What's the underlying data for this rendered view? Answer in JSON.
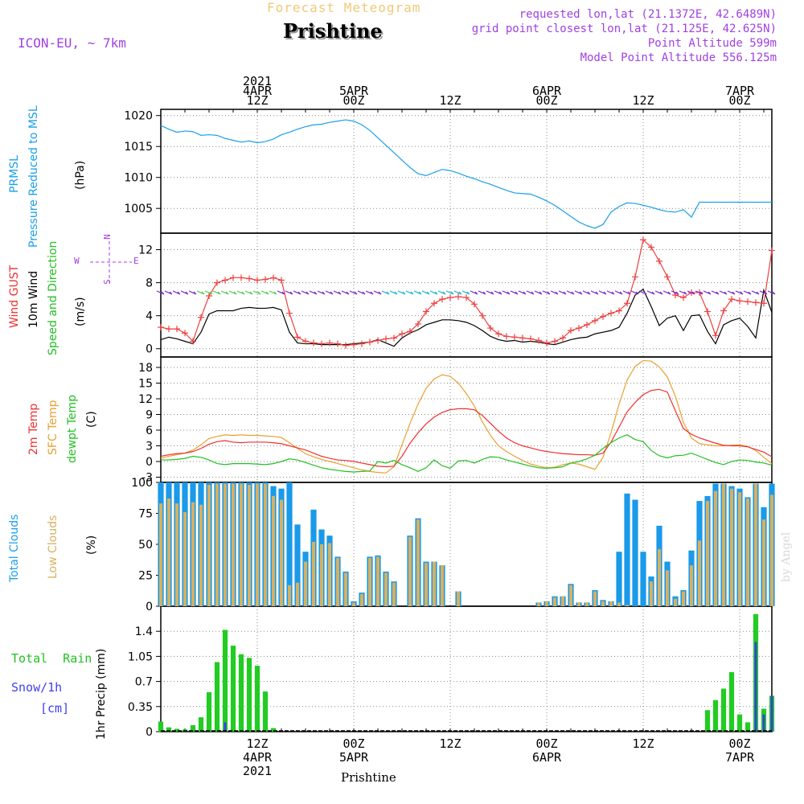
{
  "header": {
    "subtitle": "Forecast Meteogram",
    "station": "Prishtine",
    "model": "ICON-EU, ~ 7km",
    "requested": "requested lon,lat (21.1372E, 42.6489N)",
    "grid_point": "grid point closest lon,lat (21.125E, 42.625N)",
    "point_altitude": "Point Altitude 599m",
    "model_altitude": "Model Point Altitude 556.125m"
  },
  "footer": {
    "station": "Prishtine",
    "watermark": "by Angel"
  },
  "colors": {
    "pressure": "#1aa0e8",
    "gust": "#ee4040",
    "wind": "#000000",
    "temp2m": "#ee3030",
    "sfc": "#e8a030",
    "dew": "#22c022",
    "total_cloud": "#1a9ae8",
    "low_cloud": "#d8b060",
    "rain": "#22cc22",
    "snow": "#3a3aee",
    "grid": "#888888",
    "label_purple": "#a040e0"
  },
  "time_axis": {
    "top_labels": [
      {
        "h": 12,
        "lines": [
          "2021",
          "4APR",
          "12Z"
        ]
      },
      {
        "h": 24,
        "lines": [
          "5APR",
          "00Z"
        ]
      },
      {
        "h": 36,
        "lines": [
          "12Z"
        ]
      },
      {
        "h": 48,
        "lines": [
          "6APR",
          "00Z"
        ]
      },
      {
        "h": 60,
        "lines": [
          "12Z"
        ]
      },
      {
        "h": 72,
        "lines": [
          "7APR",
          "00Z"
        ]
      }
    ],
    "bottom_labels": [
      {
        "h": 12,
        "lines": [
          "12Z",
          "4APR",
          "2021"
        ]
      },
      {
        "h": 24,
        "lines": [
          "00Z",
          "5APR"
        ]
      },
      {
        "h": 36,
        "lines": [
          "12Z"
        ]
      },
      {
        "h": 48,
        "lines": [
          "00Z",
          "6APR"
        ]
      },
      {
        "h": 60,
        "lines": [
          "12Z"
        ]
      },
      {
        "h": 72,
        "lines": [
          "00Z",
          "7APR"
        ]
      }
    ]
  },
  "compass": {
    "n": "N",
    "s": "S",
    "w": "W",
    "e": "E"
  },
  "chart_data": [
    {
      "type": "line",
      "ylabel": "(hPa)",
      "side_labels": [
        "PRMSL",
        "Pressure Reduced to MSL"
      ],
      "yticks": [
        1005,
        1010,
        1015,
        1020
      ],
      "ylim": [
        1001,
        1021
      ],
      "x_hours": [
        0,
        1,
        2,
        3,
        4,
        5,
        6,
        7,
        8,
        9,
        10,
        11,
        12,
        13,
        14,
        15,
        16,
        17,
        18,
        19,
        20,
        21,
        22,
        23,
        24,
        25,
        26,
        27,
        28,
        29,
        30,
        31,
        32,
        33,
        34,
        35,
        36,
        37,
        38,
        39,
        40,
        41,
        42,
        43,
        44,
        45,
        46,
        47,
        48,
        49,
        50,
        51,
        52,
        53,
        54,
        55,
        56,
        57,
        58,
        59,
        60,
        61,
        62,
        63,
        64,
        65,
        66,
        67,
        68,
        69,
        70,
        71,
        72,
        73,
        74,
        75,
        76
      ],
      "series": [
        {
          "values": [
            1018.4,
            1017.8,
            1017.3,
            1017.5,
            1017.4,
            1016.8,
            1016.9,
            1016.8,
            1016.3,
            1016.0,
            1015.7,
            1015.9,
            1015.6,
            1015.8,
            1016.2,
            1016.9,
            1017.3,
            1017.8,
            1018.2,
            1018.5,
            1018.6,
            1018.9,
            1019.1,
            1019.3,
            1019.1,
            1018.5,
            1017.6,
            1016.4,
            1015.2,
            1014.0,
            1012.8,
            1011.6,
            1010.6,
            1010.3,
            1010.8,
            1011.3,
            1011.1,
            1010.7,
            1010.2,
            1009.8,
            1009.3,
            1008.9,
            1008.4,
            1007.9,
            1007.5,
            1007.4,
            1007.3,
            1006.8,
            1006.2,
            1005.5,
            1004.6,
            1003.7,
            1002.8,
            1002.2,
            1001.8,
            1002.4,
            1004.4,
            1005.3,
            1005.9,
            1005.8,
            1005.5,
            1005.2,
            1004.8,
            1004.5,
            1004.4,
            1004.8,
            1003.6,
            1006.0,
            1006.0,
            1006.0,
            1006.0,
            1006.0,
            1006.0,
            1006.0,
            1006.0,
            1006.0,
            1006.0
          ]
        }
      ]
    },
    {
      "type": "line",
      "ylabel": "(m/s)",
      "side_labels": [
        "Wind GUST",
        "10m Wind",
        "Speed and Direction"
      ],
      "yticks": [
        0,
        4,
        8,
        12
      ],
      "ylim": [
        -1,
        14
      ],
      "series": [
        {
          "name": "Wind GUST",
          "values": [
            2.6,
            2.4,
            2.4,
            1.9,
            0.9,
            3.8,
            6.4,
            8.0,
            8.3,
            8.6,
            8.6,
            8.5,
            8.3,
            8.4,
            8.6,
            8.3,
            4.3,
            1.4,
            0.9,
            0.7,
            0.6,
            0.7,
            0.6,
            0.4,
            0.5,
            0.6,
            0.8,
            1.0,
            1.2,
            1.3,
            1.8,
            2.1,
            3.0,
            4.5,
            5.5,
            6.0,
            6.2,
            6.3,
            6.2,
            5.4,
            4.0,
            2.5,
            1.8,
            1.5,
            1.4,
            1.3,
            1.2,
            1.0,
            0.7,
            0.9,
            1.3,
            2.2,
            2.5,
            2.9,
            3.4,
            3.9,
            4.3,
            4.6,
            5.5,
            8.7,
            13.2,
            12.3,
            10.6,
            8.7,
            6.5,
            6.2,
            6.8,
            6.8,
            4.5,
            1.6,
            4.6,
            6.0,
            5.8,
            5.7,
            5.6,
            5.5,
            11.9
          ]
        },
        {
          "name": "10m Wind",
          "values": [
            1.1,
            1.4,
            1.2,
            0.9,
            0.6,
            2.0,
            4.2,
            4.6,
            4.6,
            4.6,
            4.9,
            5.0,
            4.9,
            4.9,
            5.0,
            4.7,
            2.0,
            0.7,
            0.6,
            0.6,
            0.5,
            0.5,
            0.5,
            0.5,
            0.6,
            0.7,
            0.8,
            1.1,
            0.7,
            0.3,
            1.3,
            1.9,
            2.3,
            2.9,
            3.2,
            3.5,
            3.5,
            3.4,
            3.2,
            2.8,
            2.2,
            1.5,
            1.1,
            0.9,
            1.0,
            0.8,
            0.9,
            0.8,
            0.6,
            0.5,
            0.8,
            1.1,
            1.3,
            1.4,
            1.8,
            2.0,
            2.2,
            2.6,
            4.3,
            6.5,
            7.2,
            5.1,
            2.8,
            3.7,
            4.0,
            2.2,
            4.0,
            4.1,
            2.1,
            0.6,
            2.9,
            3.4,
            3.7,
            2.7,
            1.3,
            7.1,
            4.4
          ]
        }
      ]
    },
    {
      "type": "line",
      "ylabel": "(C)",
      "side_labels": [
        "2m Temp",
        "SFC Temp",
        "dewpt Temp"
      ],
      "yticks": [
        -3,
        0,
        3,
        6,
        9,
        12,
        15,
        18
      ],
      "ylim": [
        -4,
        20
      ],
      "series": [
        {
          "name": "2m Temp",
          "values": [
            1.0,
            1.3,
            1.5,
            1.6,
            1.9,
            2.5,
            3.3,
            3.8,
            4.0,
            3.7,
            3.6,
            3.7,
            3.7,
            3.7,
            3.6,
            3.4,
            3.0,
            2.6,
            2.2,
            1.6,
            1.0,
            0.6,
            0.3,
            0.2,
            0.0,
            -0.3,
            -0.6,
            -0.9,
            -1.0,
            -0.9,
            1.0,
            3.5,
            5.5,
            7.2,
            8.5,
            9.4,
            9.9,
            10.1,
            10.1,
            9.9,
            8.8,
            7.3,
            5.8,
            4.5,
            3.6,
            3.0,
            2.6,
            2.2,
            1.9,
            1.7,
            1.5,
            1.4,
            1.3,
            1.3,
            1.2,
            1.6,
            3.7,
            6.6,
            9.5,
            11.3,
            12.8,
            13.6,
            13.8,
            13.3,
            9.7,
            6.3,
            5.2,
            4.5,
            4.0,
            3.5,
            3.1,
            3.0,
            3.0,
            2.8,
            2.3,
            1.8,
            0.9
          ]
        },
        {
          "name": "SFC Temp",
          "values": [
            0.6,
            1.0,
            1.3,
            1.6,
            2.2,
            3.2,
            4.4,
            4.8,
            5.1,
            5.0,
            5.1,
            5.0,
            5.0,
            4.9,
            4.8,
            4.6,
            3.6,
            2.5,
            1.5,
            0.9,
            0.4,
            0.0,
            -0.4,
            -0.8,
            -1.2,
            -1.6,
            -1.9,
            -2.1,
            -2.2,
            -1.0,
            3.2,
            7.3,
            11.0,
            14.0,
            15.8,
            16.6,
            16.3,
            15.0,
            13.0,
            10.6,
            7.6,
            5.0,
            3.0,
            1.9,
            1.0,
            0.2,
            -0.5,
            -0.9,
            -1.2,
            -1.1,
            -0.6,
            -0.3,
            -0.5,
            -1.0,
            -1.5,
            0.8,
            5.5,
            11.0,
            15.6,
            18.2,
            19.3,
            19.2,
            18.1,
            16.2,
            12.5,
            7.5,
            4.5,
            3.4,
            3.2,
            3.0,
            3.0,
            3.1,
            3.2,
            2.9,
            2.1,
            0.8,
            -0.4
          ]
        },
        {
          "name": "dewpt Temp",
          "values": [
            0.3,
            0.3,
            0.4,
            0.6,
            1.0,
            0.8,
            0.3,
            -0.4,
            -0.6,
            -0.4,
            -0.4,
            -0.4,
            -0.5,
            -0.6,
            -0.4,
            0.0,
            0.5,
            0.3,
            -0.2,
            -0.7,
            -1.2,
            -1.5,
            -1.7,
            -1.9,
            -2.0,
            -1.9,
            -1.8,
            0.0,
            -0.3,
            0.2,
            -0.6,
            -1.2,
            -1.9,
            -1.2,
            0.3,
            -0.8,
            -1.3,
            0.1,
            0.2,
            -0.3,
            0.4,
            0.9,
            0.8,
            0.3,
            -0.1,
            -0.5,
            -0.9,
            -1.2,
            -1.3,
            -1.2,
            -1.0,
            -0.3,
            0.0,
            0.5,
            1.2,
            2.5,
            3.6,
            4.5,
            5.1,
            4.2,
            3.8,
            2.1,
            1.1,
            0.7,
            1.1,
            1.2,
            1.6,
            1.0,
            0.4,
            -0.2,
            -0.6,
            0.0,
            0.3,
            0.2,
            -0.1,
            -0.3,
            -0.7
          ]
        }
      ]
    },
    {
      "type": "bar",
      "ylabel": "(%)",
      "side_labels": [
        "Total Clouds",
        "Low Clouds"
      ],
      "yticks": [
        0,
        25,
        50,
        75,
        100
      ],
      "ylim": [
        0,
        100
      ],
      "series": [
        {
          "name": "Total Clouds",
          "values": [
            100,
            100,
            100,
            100,
            100,
            100,
            100,
            100,
            100,
            100,
            100,
            100,
            100,
            100,
            97,
            95,
            100,
            66,
            44,
            78,
            62,
            57,
            40,
            28,
            4,
            11,
            40,
            41,
            28,
            20,
            0,
            57,
            71,
            36,
            36,
            33,
            0,
            12,
            0,
            0,
            0,
            0,
            0,
            0,
            0,
            0,
            0,
            3,
            4,
            8,
            8,
            18,
            3,
            3,
            13,
            5,
            4,
            44,
            91,
            86,
            44,
            24,
            65,
            36,
            8,
            13,
            45,
            85,
            89,
            99,
            99,
            97,
            95,
            88,
            99,
            80,
            99
          ]
        },
        {
          "name": "Low Clouds",
          "values": [
            83,
            87,
            83,
            76,
            84,
            82,
            98,
            99,
            99,
            99,
            99,
            98,
            99,
            99,
            89,
            86,
            17,
            19,
            36,
            52,
            50,
            51,
            39,
            27,
            3,
            10,
            39,
            40,
            27,
            19,
            0,
            56,
            70,
            35,
            36,
            33,
            0,
            12,
            0,
            0,
            0,
            0,
            0,
            0,
            0,
            0,
            0,
            3,
            4,
            7,
            8,
            17,
            3,
            3,
            12,
            4,
            4,
            3,
            1,
            0,
            0,
            20,
            46,
            29,
            6,
            12,
            33,
            53,
            85,
            93,
            99,
            95,
            92,
            87,
            99,
            70,
            90
          ]
        }
      ]
    },
    {
      "type": "bar",
      "ylabel": "1hr Precip (mm)",
      "side_labels": [
        "Total Rain",
        "Snow/1h",
        "[cm]"
      ],
      "yticks": [
        0,
        0.35,
        0.7,
        1.05,
        1.4
      ],
      "ylim": [
        0,
        1.75
      ],
      "series": [
        {
          "name": "Total Rain",
          "values": [
            0.14,
            0.06,
            0.04,
            0.03,
            0.09,
            0.2,
            0.55,
            0.97,
            1.42,
            1.2,
            1.08,
            1.03,
            0.92,
            0.56,
            0.05,
            0,
            0,
            0,
            0,
            0,
            0,
            0,
            0,
            0,
            0,
            0,
            0,
            0,
            0,
            0,
            0,
            0,
            0,
            0,
            0,
            0,
            0,
            0,
            0,
            0,
            0,
            0,
            0,
            0,
            0,
            0,
            0,
            0,
            0,
            0,
            0,
            0,
            0,
            0,
            0,
            0,
            0,
            0,
            0,
            0,
            0,
            0,
            0,
            0,
            0,
            0,
            0,
            0,
            0.3,
            0.44,
            0.6,
            0.83,
            0.24,
            0.13,
            1.64,
            0.32,
            0.5
          ]
        },
        {
          "name": "Snow/1h",
          "values": [
            0,
            0,
            0,
            0,
            0,
            0,
            0,
            0,
            0.13,
            0,
            0,
            0,
            0,
            0,
            0,
            0,
            0,
            0,
            0,
            0,
            0,
            0,
            0,
            0,
            0,
            0,
            0,
            0,
            0,
            0,
            0,
            0,
            0,
            0,
            0,
            0,
            0,
            0,
            0,
            0,
            0,
            0,
            0,
            0,
            0,
            0,
            0,
            0,
            0,
            0,
            0,
            0,
            0,
            0,
            0,
            0,
            0,
            0,
            0,
            0,
            0,
            0,
            0,
            0,
            0,
            0,
            0,
            0,
            0,
            0,
            0,
            0,
            0,
            0,
            1.25,
            0.24,
            0.5
          ]
        }
      ]
    }
  ]
}
